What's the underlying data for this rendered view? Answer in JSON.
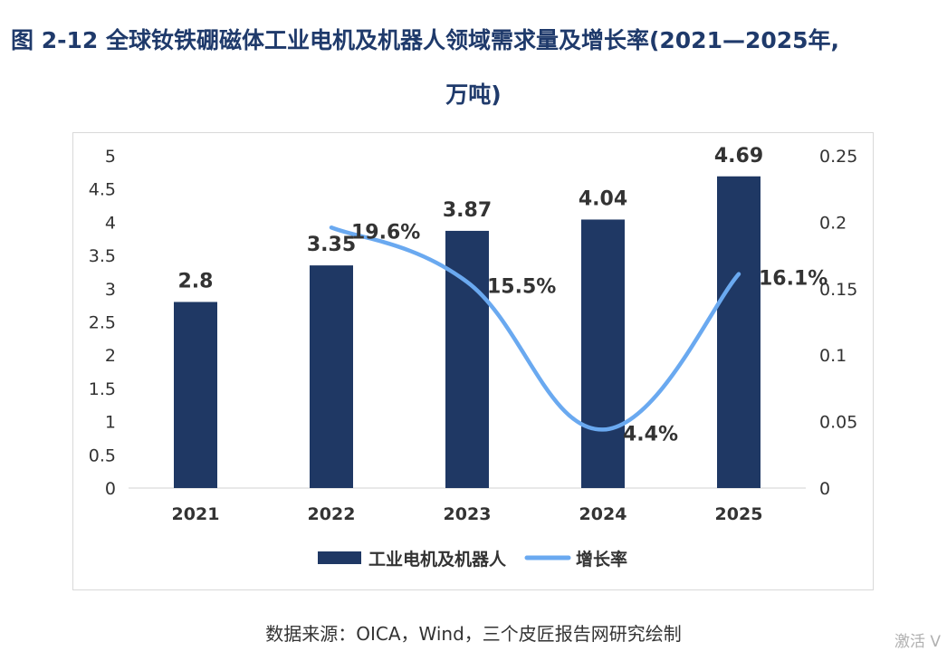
{
  "title_line1": "图 2-12 全球钕铁硼磁体工业电机及机器人领域需求量及增长率(2021—2025年,",
  "title_line2": "万吨)",
  "source": "数据来源：OICA，Wind，三个皮匠报告网研究绘制",
  "watermark": "激活 V",
  "colors": {
    "bar": "#1f3864",
    "line": "#6aa9f0",
    "title": "#1f3a6b"
  },
  "chart_data": {
    "type": "bar",
    "categories": [
      "2021",
      "2022",
      "2023",
      "2024",
      "2025"
    ],
    "series": [
      {
        "name": "工业电机及机器人",
        "type": "bar",
        "axis": "left",
        "values": [
          2.8,
          3.35,
          3.87,
          4.04,
          4.69
        ],
        "labels": [
          "2.8",
          "3.35",
          "3.87",
          "4.04",
          "4.69"
        ]
      },
      {
        "name": "增长率",
        "type": "line",
        "axis": "right",
        "smooth": true,
        "x": [
          "2022",
          "2023",
          "2024",
          "2025"
        ],
        "values": [
          0.196,
          0.155,
          0.044,
          0.161
        ],
        "labels": [
          "19.6%",
          "15.5%",
          "4.4%",
          "16.1%"
        ]
      }
    ],
    "y_left": {
      "lim": [
        0,
        5
      ],
      "ticks": [
        "0",
        "0.5",
        "1",
        "1.5",
        "2",
        "2.5",
        "3",
        "3.5",
        "4",
        "4.5",
        "5"
      ]
    },
    "y_right": {
      "lim": [
        0,
        0.25
      ],
      "ticks": [
        "0",
        "0.05",
        "0.1",
        "0.15",
        "0.2",
        "0.25"
      ]
    },
    "grid": false,
    "legend": "bottom"
  }
}
